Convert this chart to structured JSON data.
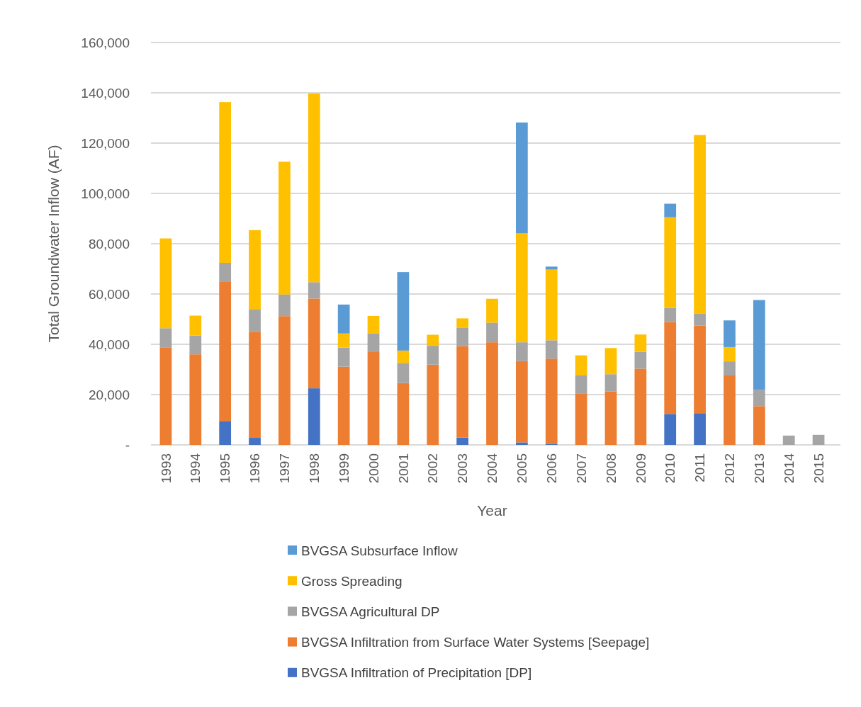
{
  "chart_data": {
    "type": "bar",
    "stacked": true,
    "xlabel": "Year",
    "ylabel": "Total Groundwater Inflow (AF)",
    "categories": [
      "1993",
      "1994",
      "1995",
      "1996",
      "1997",
      "1998",
      "1999",
      "2000",
      "2001",
      "2002",
      "2003",
      "2004",
      "2005",
      "2006",
      "2007",
      "2008",
      "2009",
      "2010",
      "2011",
      "2012",
      "2013",
      "2014",
      "2015"
    ],
    "series": [
      {
        "name": "BVGSA Infiltration of Precipitation [DP]",
        "color": "#4472c4",
        "values": [
          0,
          0,
          9500,
          2800,
          0,
          22500,
          0,
          0,
          0,
          0,
          2900,
          0,
          1000,
          300,
          0,
          0,
          0,
          12300,
          12600,
          0,
          0,
          0,
          0
        ]
      },
      {
        "name": "BVGSA Infiltration from Surface Water Systems [Seepage]",
        "color": "#ed7d31",
        "values": [
          38800,
          36000,
          55300,
          42200,
          51200,
          35700,
          31100,
          36900,
          24600,
          31900,
          36400,
          40800,
          32300,
          34000,
          20300,
          21200,
          30300,
          36600,
          34900,
          27600,
          15400,
          0,
          0
        ]
      },
      {
        "name": "BVGSA Agricultural DP",
        "color": "#a5a5a5",
        "values": [
          7600,
          7500,
          7600,
          8800,
          8600,
          6500,
          7600,
          7500,
          8000,
          7500,
          7200,
          7800,
          7500,
          7300,
          7300,
          6900,
          6700,
          5600,
          4800,
          5600,
          6400,
          3700,
          4000
        ]
      },
      {
        "name": "Gross Spreading",
        "color": "#ffc000",
        "values": [
          35700,
          7900,
          63900,
          31600,
          52800,
          75000,
          5600,
          6900,
          4900,
          4400,
          3800,
          9500,
          43300,
          28100,
          8000,
          10400,
          6900,
          36000,
          70900,
          5700,
          0,
          0,
          0
        ]
      },
      {
        "name": "BVGSA Subsurface Inflow",
        "color": "#5b9bd5",
        "values": [
          0,
          0,
          0,
          0,
          0,
          0,
          11500,
          0,
          31200,
          0,
          0,
          0,
          44100,
          1200,
          0,
          0,
          0,
          5400,
          0,
          10600,
          35800,
          0,
          0
        ]
      }
    ],
    "ylim": [
      0,
      160000
    ],
    "yticks": [
      {
        "value": 0,
        "label": "-"
      },
      {
        "value": 20000,
        "label": "20,000"
      },
      {
        "value": 40000,
        "label": "40,000"
      },
      {
        "value": 60000,
        "label": "60,000"
      },
      {
        "value": 80000,
        "label": "80,000"
      },
      {
        "value": 100000,
        "label": "100,000"
      },
      {
        "value": 120000,
        "label": "120,000"
      },
      {
        "value": 140000,
        "label": "140,000"
      },
      {
        "value": 160000,
        "label": "160,000"
      }
    ],
    "grid": "y",
    "legend": "bottom"
  }
}
